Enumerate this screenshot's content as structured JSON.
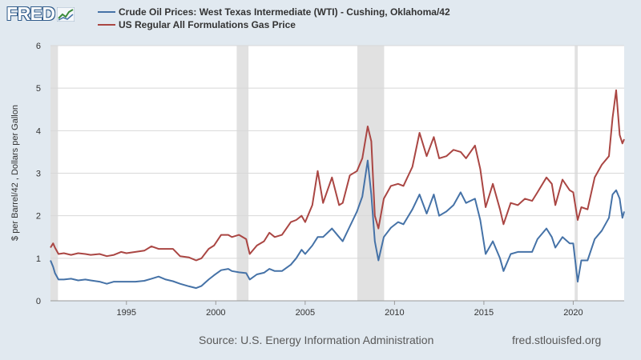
{
  "app": {
    "logo_text": "FRED",
    "logo_icon": "fred-chart-icon",
    "source": "Source: U.S. Energy Information Administration",
    "url": "fred.stlouisfed.org"
  },
  "colors": {
    "background": "#e1e9f0",
    "plot_bg": "#ffffff",
    "recession": "#e1e1e1",
    "wti": "#4572a7",
    "gas": "#aa4643"
  },
  "chart_data": {
    "type": "line",
    "ylabel": "$ per Barrel/42 , Dollars per Gallon",
    "xlabel": "",
    "xlim": [
      1990.75,
      2022.85
    ],
    "ylim": [
      0,
      6
    ],
    "yticks": [
      "0",
      "1",
      "2",
      "3",
      "4",
      "5",
      "6"
    ],
    "xticks": [
      "1995",
      "2000",
      "2005",
      "2010",
      "2015",
      "2020"
    ],
    "grid": "horizontal",
    "legend_position": "top-left",
    "recessions": [
      [
        1990.58,
        1991.17
      ],
      [
        2001.17,
        2001.83
      ],
      [
        2007.92,
        2009.42
      ],
      [
        2020.08,
        2020.25
      ]
    ],
    "series": [
      {
        "name": "Crude Oil Prices: West Texas Intermediate (WTI) - Cushing, Oklahoma/42",
        "x": [
          1990.75,
          1990.9,
          1991.0,
          1991.2,
          1991.5,
          1991.9,
          1992.3,
          1992.7,
          1993.0,
          1993.5,
          1993.9,
          1994.3,
          1994.7,
          1995.0,
          1995.5,
          1996.0,
          1996.4,
          1996.8,
          1997.2,
          1997.6,
          1998.0,
          1998.5,
          1998.9,
          1999.2,
          1999.6,
          1999.9,
          2000.3,
          2000.7,
          2000.9,
          2001.3,
          2001.7,
          2001.9,
          2002.3,
          2002.7,
          2003.0,
          2003.3,
          2003.7,
          2004.2,
          2004.5,
          2004.8,
          2005.0,
          2005.4,
          2005.7,
          2006.0,
          2006.5,
          2006.9,
          2007.1,
          2007.5,
          2007.9,
          2008.2,
          2008.5,
          2008.7,
          2008.9,
          2009.1,
          2009.4,
          2009.8,
          2010.2,
          2010.5,
          2011.0,
          2011.4,
          2011.8,
          2012.2,
          2012.5,
          2012.9,
          2013.3,
          2013.7,
          2014.0,
          2014.5,
          2014.8,
          2015.1,
          2015.5,
          2015.9,
          2016.1,
          2016.5,
          2016.9,
          2017.3,
          2017.7,
          2018.0,
          2018.5,
          2018.8,
          2019.0,
          2019.4,
          2019.8,
          2020.0,
          2020.25,
          2020.45,
          2020.8,
          2021.2,
          2021.6,
          2022.0,
          2022.2,
          2022.4,
          2022.6,
          2022.75,
          2022.85
        ],
        "values": [
          0.95,
          0.8,
          0.65,
          0.5,
          0.5,
          0.52,
          0.48,
          0.5,
          0.48,
          0.45,
          0.4,
          0.45,
          0.45,
          0.45,
          0.45,
          0.47,
          0.52,
          0.57,
          0.5,
          0.46,
          0.4,
          0.34,
          0.3,
          0.35,
          0.5,
          0.6,
          0.72,
          0.75,
          0.7,
          0.67,
          0.65,
          0.5,
          0.62,
          0.66,
          0.75,
          0.7,
          0.7,
          0.85,
          1.0,
          1.2,
          1.1,
          1.3,
          1.5,
          1.5,
          1.7,
          1.5,
          1.4,
          1.75,
          2.1,
          2.45,
          3.3,
          2.5,
          1.4,
          0.95,
          1.5,
          1.72,
          1.85,
          1.8,
          2.15,
          2.5,
          2.05,
          2.5,
          2.0,
          2.1,
          2.25,
          2.55,
          2.3,
          2.4,
          1.9,
          1.1,
          1.4,
          1.0,
          0.7,
          1.1,
          1.15,
          1.15,
          1.15,
          1.45,
          1.7,
          1.5,
          1.25,
          1.5,
          1.35,
          1.35,
          0.45,
          0.95,
          0.95,
          1.45,
          1.65,
          1.95,
          2.5,
          2.6,
          2.4,
          1.95,
          2.1
        ]
      },
      {
        "name": "US Regular All Formulations Gas Price",
        "x": [
          1990.75,
          1990.9,
          1991.0,
          1991.2,
          1991.5,
          1991.9,
          1992.3,
          1992.7,
          1993.0,
          1993.5,
          1993.9,
          1994.3,
          1994.7,
          1995.0,
          1995.5,
          1996.0,
          1996.4,
          1996.8,
          1997.2,
          1997.6,
          1998.0,
          1998.5,
          1998.9,
          1999.2,
          1999.6,
          1999.9,
          2000.3,
          2000.7,
          2000.9,
          2001.3,
          2001.7,
          2001.9,
          2002.3,
          2002.7,
          2003.0,
          2003.3,
          2003.7,
          2004.2,
          2004.5,
          2004.8,
          2005.0,
          2005.4,
          2005.7,
          2006.0,
          2006.5,
          2006.9,
          2007.1,
          2007.5,
          2007.9,
          2008.2,
          2008.5,
          2008.7,
          2008.9,
          2009.1,
          2009.4,
          2009.8,
          2010.2,
          2010.5,
          2011.0,
          2011.4,
          2011.8,
          2012.2,
          2012.5,
          2012.9,
          2013.3,
          2013.7,
          2014.0,
          2014.5,
          2014.8,
          2015.1,
          2015.5,
          2015.9,
          2016.1,
          2016.5,
          2016.9,
          2017.3,
          2017.7,
          2018.0,
          2018.5,
          2018.8,
          2019.0,
          2019.4,
          2019.8,
          2020.0,
          2020.25,
          2020.45,
          2020.8,
          2021.2,
          2021.6,
          2022.0,
          2022.2,
          2022.4,
          2022.6,
          2022.75,
          2022.85
        ],
        "values": [
          1.25,
          1.35,
          1.25,
          1.1,
          1.12,
          1.08,
          1.12,
          1.1,
          1.08,
          1.1,
          1.05,
          1.08,
          1.15,
          1.12,
          1.15,
          1.18,
          1.28,
          1.22,
          1.22,
          1.22,
          1.05,
          1.02,
          0.95,
          1.0,
          1.22,
          1.3,
          1.55,
          1.55,
          1.5,
          1.55,
          1.45,
          1.1,
          1.3,
          1.4,
          1.6,
          1.5,
          1.55,
          1.85,
          1.9,
          2.0,
          1.85,
          2.25,
          3.05,
          2.3,
          2.9,
          2.25,
          2.3,
          2.95,
          3.05,
          3.35,
          4.1,
          3.75,
          2.0,
          1.7,
          2.4,
          2.7,
          2.75,
          2.7,
          3.15,
          3.95,
          3.4,
          3.85,
          3.35,
          3.4,
          3.55,
          3.5,
          3.35,
          3.65,
          3.1,
          2.2,
          2.75,
          2.15,
          1.8,
          2.3,
          2.25,
          2.4,
          2.35,
          2.55,
          2.9,
          2.75,
          2.25,
          2.85,
          2.6,
          2.55,
          1.9,
          2.2,
          2.15,
          2.9,
          3.2,
          3.4,
          4.3,
          4.95,
          3.9,
          3.7,
          3.8
        ]
      }
    ]
  }
}
